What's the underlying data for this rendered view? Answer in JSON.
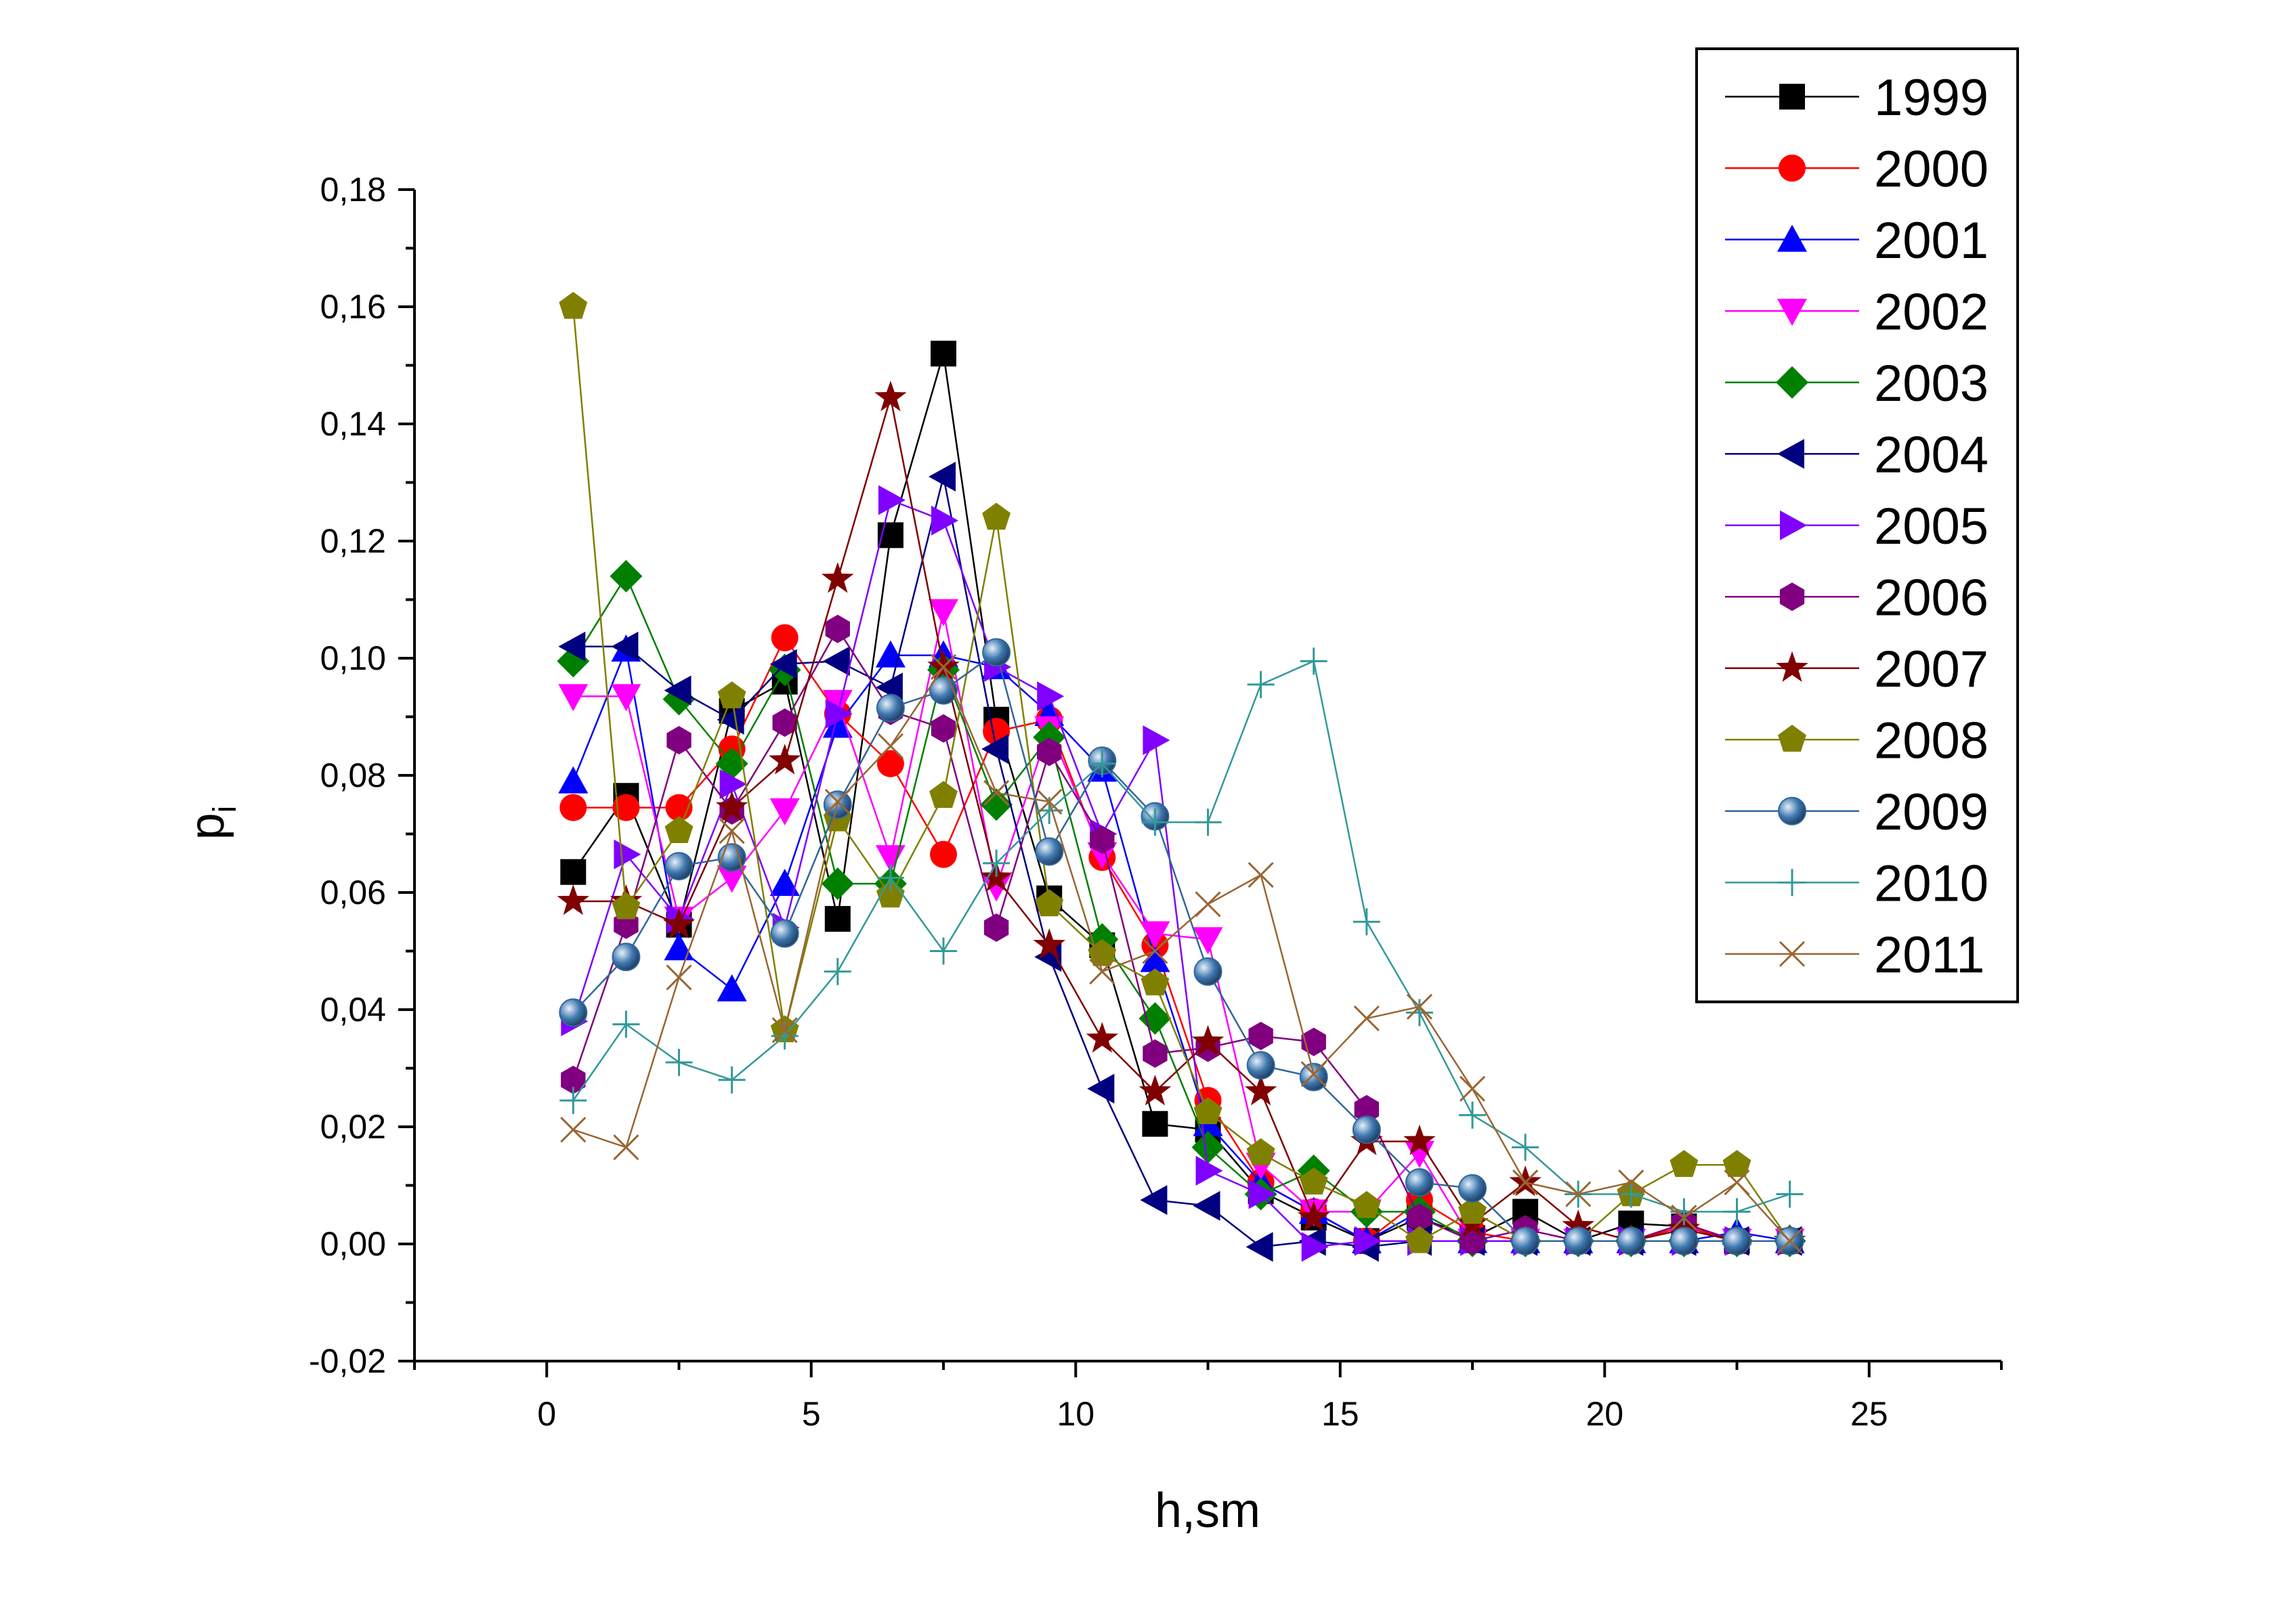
{
  "chart_data": {
    "type": "line",
    "xlabel": "h,sm",
    "ylabel": "p",
    "ylabel_sub": "i",
    "xlim": [
      -2.5,
      27.5
    ],
    "ylim": [
      -0.02,
      0.18
    ],
    "x_ticks": [
      0,
      5,
      10,
      15,
      20,
      25
    ],
    "x_tick_labels": [
      "0",
      "5",
      "10",
      "15",
      "20",
      "25"
    ],
    "y_ticks": [
      -0.02,
      0.0,
      0.02,
      0.04,
      0.06,
      0.08,
      0.1,
      0.12,
      0.14,
      0.16,
      0.18
    ],
    "y_tick_labels": [
      "-0,02",
      "0,00",
      "0,02",
      "0,04",
      "0,06",
      "0,08",
      "0,10",
      "0,12",
      "0,14",
      "0,16",
      "0,18"
    ],
    "grid": false,
    "legend_position": "top-right",
    "x": [
      0.5,
      1.5,
      2.5,
      3.5,
      4.5,
      5.5,
      6.5,
      7.5,
      8.5,
      9.5,
      10.5,
      11.5,
      12.5,
      13.5,
      14.5,
      15.5,
      16.5,
      17.5,
      18.5,
      19.5,
      20.5,
      21.5,
      22.5,
      23.5
    ],
    "series": [
      {
        "name": "1999",
        "color": "#000000",
        "marker": "square",
        "values": [
          0.0635,
          0.0765,
          0.0545,
          0.091,
          0.096,
          0.0555,
          0.121,
          0.152,
          0.0895,
          0.059,
          0.051,
          0.0205,
          0.0195,
          0.009,
          0.0045,
          0.0005,
          0.0045,
          0.001,
          0.0055,
          0.0005,
          0.0035,
          0.003,
          0.0005,
          0.0005
        ]
      },
      {
        "name": "2000",
        "color": "#ff0000",
        "marker": "circle",
        "values": [
          0.0745,
          0.0745,
          0.0745,
          0.0845,
          0.1035,
          0.0905,
          0.082,
          0.0665,
          0.0875,
          0.0895,
          0.066,
          0.051,
          0.0245,
          0.0105,
          0.0055,
          0.0005,
          0.0075,
          0.002,
          0.0005,
          0.0005,
          0.0005,
          0.003,
          0.0005,
          0.0005
        ]
      },
      {
        "name": "2001",
        "color": "#0000ff",
        "marker": "triangle-up",
        "values": [
          0.079,
          0.1015,
          0.0505,
          0.0435,
          0.0615,
          0.0885,
          0.1005,
          0.1005,
          0.0985,
          0.0905,
          0.081,
          0.0485,
          0.0205,
          0.0105,
          0.0055,
          0.0005,
          0.0055,
          0.0005,
          0.0005,
          0.0005,
          0.0005,
          0.0005,
          0.002,
          0.0005
        ]
      },
      {
        "name": "2002",
        "color": "#ff00ff",
        "marker": "triangle-down",
        "values": [
          0.0935,
          0.0935,
          0.0555,
          0.0625,
          0.074,
          0.0925,
          0.066,
          0.108,
          0.061,
          0.088,
          0.0665,
          0.053,
          0.052,
          0.0135,
          0.0055,
          0.0055,
          0.0155,
          0.0005,
          0.0005,
          0.0005,
          0.0005,
          0.0005,
          0.0005,
          0.0005
        ]
      },
      {
        "name": "2003",
        "color": "#008000",
        "marker": "diamond",
        "values": [
          0.0995,
          0.114,
          0.093,
          0.082,
          0.098,
          0.0615,
          0.0615,
          0.098,
          0.075,
          0.0865,
          0.052,
          0.0385,
          0.0165,
          0.0085,
          0.0125,
          0.0055,
          0.0055,
          0.0005,
          0.0005,
          0.0005,
          0.0005,
          0.0005,
          0.0005,
          0.0005
        ]
      },
      {
        "name": "2004",
        "color": "#000080",
        "marker": "triangle-left",
        "values": [
          0.102,
          0.102,
          0.0945,
          0.0895,
          0.099,
          0.0995,
          0.095,
          0.131,
          0.0845,
          0.049,
          0.0265,
          0.0075,
          0.0065,
          -0.0005,
          0.0005,
          -0.0005,
          0.0005,
          0.0005,
          0.0005,
          0.0005,
          0.0005,
          0.0005,
          0.0005,
          0.0005
        ]
      },
      {
        "name": "2005",
        "color": "#8000ff",
        "marker": "triangle-right",
        "values": [
          0.038,
          0.0665,
          0.0555,
          0.0785,
          0.054,
          0.0905,
          0.127,
          0.1235,
          0.0985,
          0.0935,
          0.07,
          0.086,
          0.0125,
          0.0085,
          -0.0005,
          0.0005,
          0.0005,
          0.0005,
          0.0005,
          0.0005,
          0.0005,
          0.0005,
          0.0005,
          0.0005
        ]
      },
      {
        "name": "2006",
        "color": "#800080",
        "marker": "hexagon",
        "values": [
          0.028,
          0.0545,
          0.086,
          0.074,
          0.089,
          0.105,
          0.091,
          0.088,
          0.054,
          0.084,
          0.069,
          0.0325,
          0.0335,
          0.0355,
          0.0345,
          0.023,
          0.0045,
          0.0005,
          0.0025,
          0.0005,
          0.0005,
          0.0035,
          0.0005,
          0.0005
        ]
      },
      {
        "name": "2007",
        "color": "#800000",
        "marker": "star",
        "values": [
          0.0585,
          0.0585,
          0.0545,
          0.0745,
          0.0825,
          0.1135,
          0.1445,
          0.0985,
          0.0625,
          0.051,
          0.035,
          0.026,
          0.0345,
          0.026,
          0.0045,
          0.0175,
          0.0175,
          0.0035,
          0.0105,
          0.003,
          0.0005,
          0.0025,
          0.0005,
          0.0005
        ]
      },
      {
        "name": "2008",
        "color": "#808000",
        "marker": "pentagon",
        "values": [
          0.16,
          0.0575,
          0.0705,
          0.0935,
          0.0365,
          0.0725,
          0.0595,
          0.0765,
          0.124,
          0.058,
          0.0495,
          0.0445,
          0.0225,
          0.0155,
          0.0105,
          0.0065,
          0.0005,
          0.0055,
          0.0005,
          0.0005,
          0.0085,
          0.0135,
          0.0135,
          0.0005
        ]
      },
      {
        "name": "2009",
        "color": "#336699",
        "marker": "sphere",
        "values": [
          0.0395,
          0.049,
          0.0645,
          0.066,
          0.053,
          0.075,
          0.0915,
          0.0945,
          0.101,
          0.067,
          0.0825,
          0.073,
          0.0465,
          0.0305,
          0.0285,
          0.0195,
          0.0105,
          0.0095,
          0.0005,
          0.0005,
          0.0005,
          0.0005,
          0.0005,
          0.0005
        ]
      },
      {
        "name": "2010",
        "color": "#339999",
        "marker": "plus",
        "values": [
          0.0245,
          0.0375,
          0.031,
          0.028,
          0.0355,
          0.0465,
          0.0625,
          0.05,
          0.065,
          0.074,
          0.082,
          0.072,
          0.072,
          0.0955,
          0.0995,
          0.055,
          0.0395,
          0.022,
          0.0165,
          0.0085,
          0.0085,
          0.0055,
          0.0055,
          0.0085
        ]
      },
      {
        "name": "2011",
        "color": "#996633",
        "marker": "x",
        "values": [
          0.0195,
          0.0165,
          0.0455,
          0.0705,
          0.0365,
          0.0755,
          0.085,
          0.0985,
          0.077,
          0.0755,
          0.0465,
          0.05,
          0.058,
          0.063,
          0.029,
          0.0385,
          0.0405,
          0.0265,
          0.0105,
          0.0085,
          0.0105,
          0.0045,
          0.0105,
          0.0005
        ]
      }
    ]
  }
}
